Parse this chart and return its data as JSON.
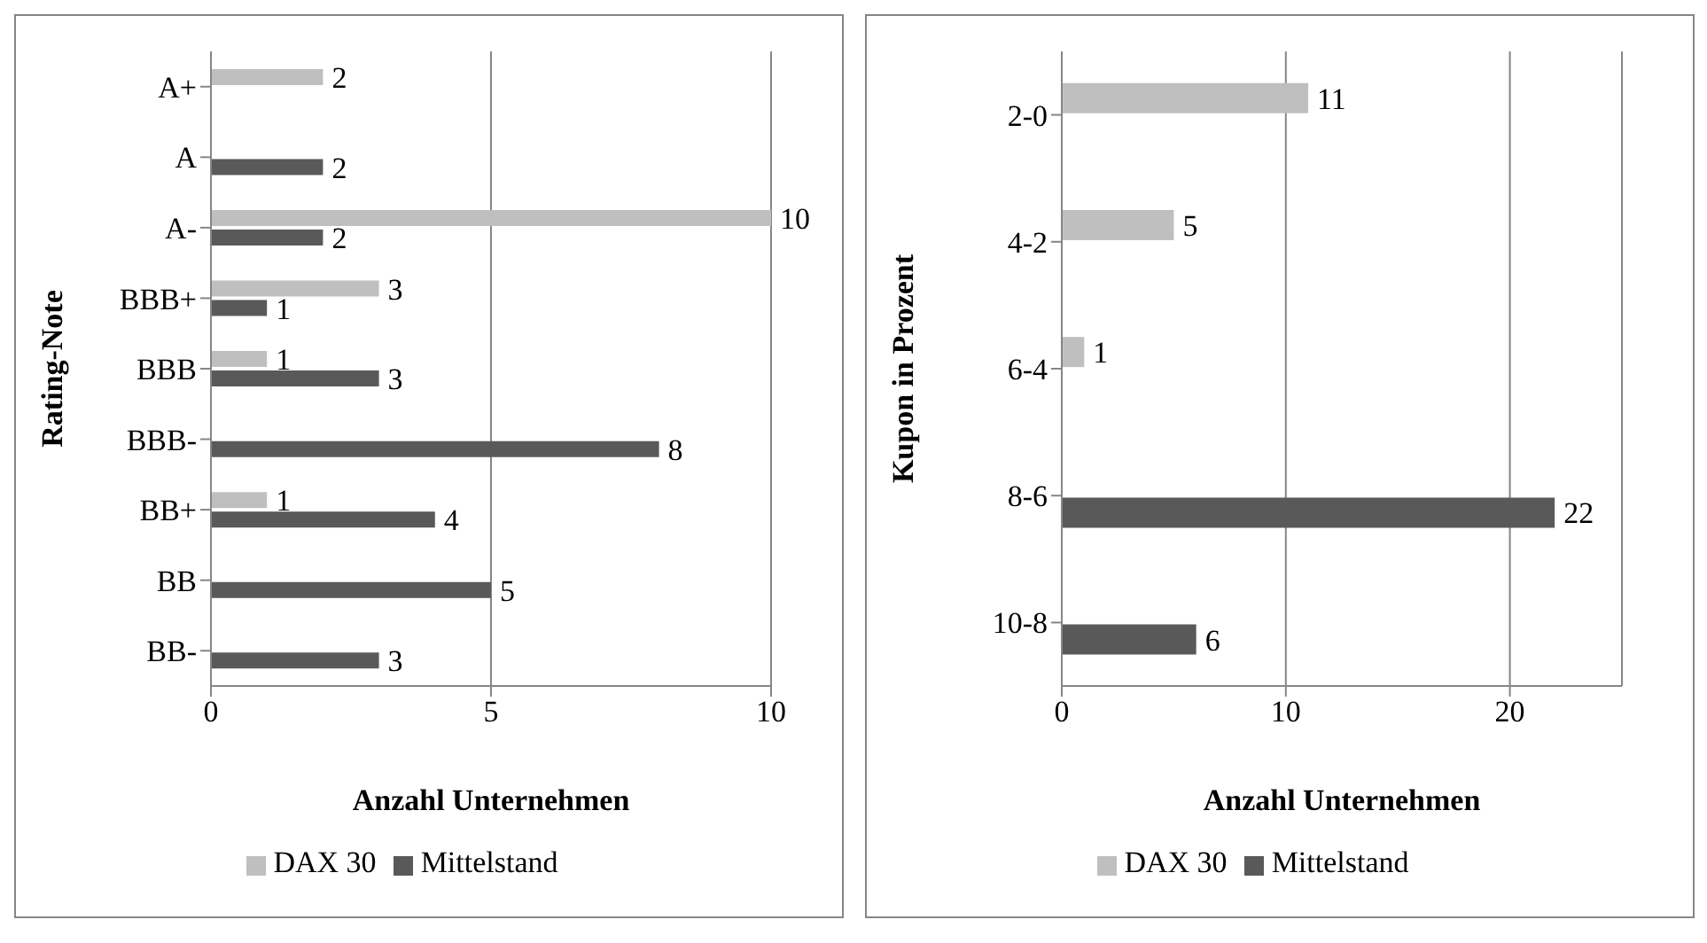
{
  "chart_data": [
    {
      "type": "bar",
      "orientation": "horizontal",
      "ylabel": "Rating-Note",
      "xlabel": "Anzahl Unternehmen",
      "categories": [
        "A+",
        "A",
        "A-",
        "BBB+",
        "BBB",
        "BBB-",
        "BB+",
        "BB",
        "BB-"
      ],
      "series": [
        {
          "name": "DAX 30",
          "color": "#bfbfbf",
          "values": [
            2,
            null,
            10,
            3,
            1,
            null,
            1,
            null,
            null
          ]
        },
        {
          "name": "Mittelstand",
          "color": "#595959",
          "values": [
            null,
            2,
            2,
            1,
            3,
            8,
            4,
            5,
            3
          ]
        }
      ],
      "xlim": [
        0,
        10
      ],
      "xticks": [
        0,
        5,
        10
      ],
      "grid": "x",
      "legend": "bottom",
      "data_labels": true
    },
    {
      "type": "bar",
      "orientation": "horizontal",
      "ylabel": "Kupon in Prozent",
      "xlabel": "Anzahl Unternehmen",
      "categories": [
        "2-0",
        "4-2",
        "6-4",
        "8-6",
        "10-8"
      ],
      "series": [
        {
          "name": "DAX 30",
          "color": "#bfbfbf",
          "values": [
            11,
            5,
            1,
            null,
            null
          ]
        },
        {
          "name": "Mittelstand",
          "color": "#595959",
          "values": [
            null,
            null,
            null,
            22,
            6
          ]
        }
      ],
      "xlim": [
        0,
        25
      ],
      "xticks": [
        0,
        10,
        20
      ],
      "grid": "x",
      "legend": "bottom",
      "data_labels": true
    }
  ]
}
